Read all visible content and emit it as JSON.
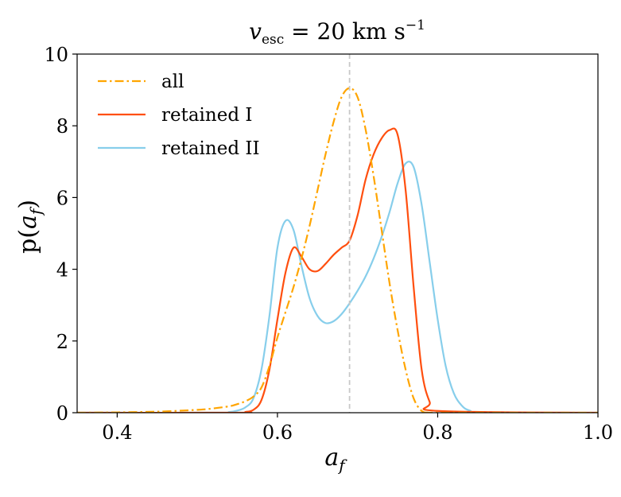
{
  "chart_data": {
    "type": "line",
    "title": "v_esc = 20 km s⁻¹",
    "title_parts": {
      "var": "v",
      "sub": "esc",
      "rest": " = 20 km s",
      "sup": "−1"
    },
    "xlabel": "a_f",
    "xlabel_parts": {
      "var": "a",
      "sub": "f"
    },
    "ylabel": "p(a_f)",
    "ylabel_parts": {
      "pre": "p(",
      "var": "a",
      "sub": "f",
      "post": ")"
    },
    "xlim": [
      0.35,
      1.0
    ],
    "ylim": [
      0,
      10
    ],
    "xticks": [
      0.4,
      0.6,
      0.8,
      1.0
    ],
    "xtick_labels": [
      "0.4",
      "0.6",
      "0.8",
      "1.0"
    ],
    "yticks": [
      0,
      2,
      4,
      6,
      8,
      10
    ],
    "ytick_labels": [
      "0",
      "2",
      "4",
      "6",
      "8",
      "10"
    ],
    "grid": false,
    "legend_position": "upper-left",
    "reference_line": {
      "x": 0.69,
      "color": "#c8c8c8",
      "style": "dashed"
    },
    "series": [
      {
        "name": "all",
        "color": "#FFA500",
        "style": "dashdot",
        "x": [
          0.35,
          0.4,
          0.45,
          0.5,
          0.52,
          0.54,
          0.55,
          0.56,
          0.57,
          0.58,
          0.59,
          0.6,
          0.61,
          0.62,
          0.63,
          0.64,
          0.65,
          0.66,
          0.67,
          0.68,
          0.69,
          0.7,
          0.71,
          0.72,
          0.73,
          0.74,
          0.75,
          0.76,
          0.77,
          0.78,
          0.79,
          0.8,
          1.0
        ],
        "y": [
          0.0,
          0.01,
          0.03,
          0.08,
          0.12,
          0.18,
          0.24,
          0.32,
          0.45,
          0.7,
          1.3,
          2.1,
          2.8,
          3.5,
          4.3,
          5.2,
          6.2,
          7.2,
          8.1,
          8.8,
          9.05,
          8.8,
          7.9,
          6.6,
          5.1,
          3.6,
          2.3,
          1.2,
          0.4,
          0.05,
          0.0,
          0.0,
          0.0
        ]
      },
      {
        "name": "retained I",
        "color": "#FF4F0F",
        "style": "solid",
        "x": [
          0.35,
          0.55,
          0.56,
          0.57,
          0.58,
          0.59,
          0.6,
          0.61,
          0.62,
          0.63,
          0.64,
          0.65,
          0.66,
          0.67,
          0.68,
          0.69,
          0.7,
          0.71,
          0.72,
          0.73,
          0.74,
          0.75,
          0.76,
          0.77,
          0.78,
          0.79,
          0.8,
          1.0
        ],
        "y": [
          0.0,
          0.0,
          0.02,
          0.08,
          0.35,
          1.2,
          2.6,
          3.9,
          4.6,
          4.35,
          4.0,
          3.95,
          4.15,
          4.4,
          4.6,
          4.8,
          5.5,
          6.5,
          7.2,
          7.65,
          7.88,
          7.75,
          6.2,
          3.5,
          1.2,
          0.3,
          0.05,
          0.0
        ]
      },
      {
        "name": "retained II",
        "color": "#87CEEB",
        "style": "solid",
        "x": [
          0.35,
          0.52,
          0.54,
          0.55,
          0.56,
          0.57,
          0.58,
          0.59,
          0.6,
          0.61,
          0.62,
          0.63,
          0.64,
          0.65,
          0.66,
          0.67,
          0.68,
          0.69,
          0.7,
          0.71,
          0.72,
          0.73,
          0.74,
          0.75,
          0.76,
          0.77,
          0.78,
          0.79,
          0.8,
          0.81,
          0.82,
          0.83,
          0.84,
          0.86,
          1.0
        ],
        "y": [
          0.0,
          0.0,
          0.02,
          0.06,
          0.15,
          0.4,
          1.2,
          2.7,
          4.6,
          5.35,
          5.1,
          4.1,
          3.2,
          2.7,
          2.5,
          2.55,
          2.75,
          3.05,
          3.4,
          3.8,
          4.3,
          4.9,
          5.6,
          6.4,
          6.95,
          6.85,
          5.8,
          4.2,
          2.6,
          1.3,
          0.55,
          0.2,
          0.06,
          0.0,
          0.0
        ]
      }
    ]
  }
}
